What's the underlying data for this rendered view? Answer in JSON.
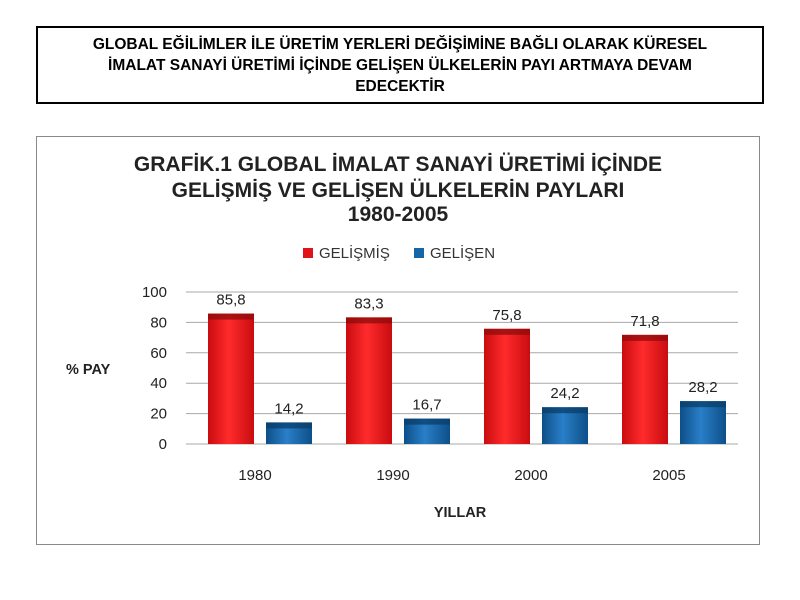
{
  "header": {
    "text": "GLOBAL EĞİLİMLER İLE ÜRETİM YERLERİ DEĞİŞİMİNE BAĞLI OLARAK KÜRESEL\nİMALAT SANAYİ ÜRETİMİ İÇİNDE GELİŞEN ÜLKELERİN PAYI ARTMAYA DEVAM\nEDECEKTİR"
  },
  "chart_data": {
    "type": "bar",
    "title_lines": [
      "GRAFİK.1 GLOBAL İMALAT SANAYİ ÜRETİMİ İÇİNDE",
      "GELİŞMİŞ VE GELİŞEN ÜLKELERİN PAYLARI",
      "1980-2005"
    ],
    "categories": [
      "1980",
      "1990",
      "2000",
      "2005"
    ],
    "series": [
      {
        "name": "GELİŞMİŞ",
        "values": [
          85.8,
          83.3,
          75.8,
          71.8
        ],
        "labels": [
          "85,8",
          "83,3",
          "75,8",
          "71,8"
        ],
        "color": "#e0131a"
      },
      {
        "name": "GELİŞEN",
        "values": [
          14.2,
          16.7,
          24.2,
          28.2
        ],
        "labels": [
          "14,2",
          "16,7",
          "24,2",
          "28,2"
        ],
        "color": "#1565a8"
      }
    ],
    "xlabel": "YILLAR",
    "ylabel": "% PAY",
    "ylim": [
      0,
      100
    ],
    "yticks": [
      0,
      20,
      40,
      60,
      80,
      100
    ],
    "grid": true,
    "legend": "top"
  }
}
